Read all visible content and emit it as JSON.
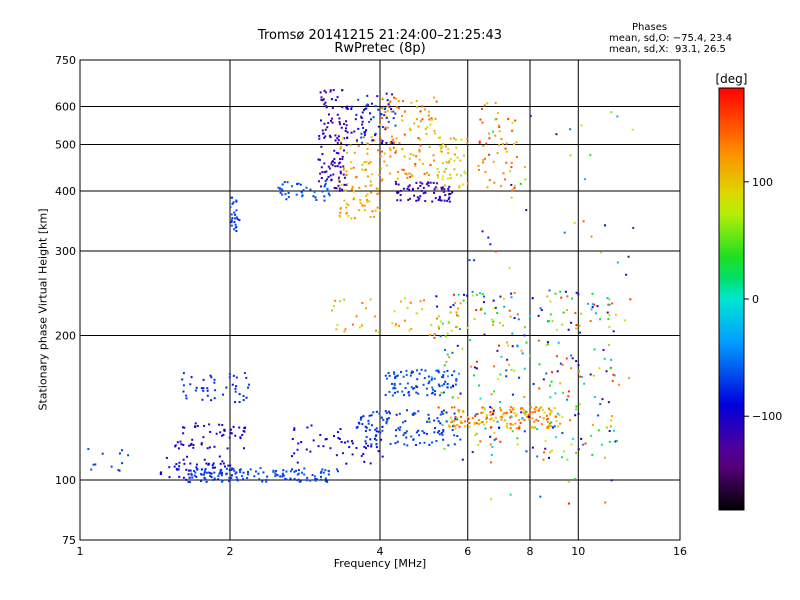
{
  "title": {
    "line1": "Tromsø 20141215 21:24:00–21:25:43",
    "line2": "RwPretec (8p)"
  },
  "phase_box": {
    "heading": "Phases",
    "line_o": "mean, sd,O: −75.4, 23.4",
    "line_x": "mean, sd,X:  93.1, 26.5"
  },
  "colorbar": {
    "unit_label": "[deg]",
    "tick_labels": [
      "100",
      "0",
      "−100"
    ],
    "tick_values": [
      100,
      0,
      -100
    ],
    "range": [
      -180,
      180
    ],
    "colormap": "rainbow"
  },
  "chart_data": {
    "type": "scatter",
    "title": "Tromsø 20141215 21:24:00–21:25:43",
    "subtitle": "RwPretec (8p)",
    "xlabel": "Frequency [MHz]",
    "ylabel": "Stationary phase Virtual Height [km]",
    "x_scale": "log",
    "y_scale": "log",
    "xlim": [
      1,
      16
    ],
    "ylim": [
      75,
      750
    ],
    "x_ticks": [
      1,
      2,
      4,
      6,
      8,
      10,
      16
    ],
    "x_tick_labels": [
      "1",
      "2",
      "4",
      "6",
      "8",
      "10",
      "16"
    ],
    "x_grid": [
      2,
      4,
      6,
      8,
      10
    ],
    "y_ticks": [
      75,
      100,
      200,
      300,
      400,
      500,
      600,
      750
    ],
    "y_tick_labels": [
      "75",
      "100",
      "200",
      "300",
      "400",
      "500",
      "600",
      "750"
    ],
    "y_grid": [
      100,
      200,
      300,
      400,
      500,
      600
    ],
    "grid": true,
    "color_variable": "phase [deg]",
    "clusters": [
      {
        "f": [
          1.0,
          1.25
        ],
        "h": [
          102,
          118
        ],
        "phase": [
          -75,
          -60
        ],
        "n": 12
      },
      {
        "f": [
          1.45,
          2.05
        ],
        "h": [
          100,
          112
        ],
        "phase": [
          -110,
          -80
        ],
        "n": 60
      },
      {
        "f": [
          1.55,
          2.15
        ],
        "h": [
          116,
          132
        ],
        "phase": [
          -120,
          -90
        ],
        "n": 55
      },
      {
        "f": [
          1.6,
          2.2
        ],
        "h": [
          145,
          168
        ],
        "phase": [
          -85,
          -65
        ],
        "n": 45
      },
      {
        "f": [
          1.65,
          3.3
        ],
        "h": [
          99,
          106
        ],
        "phase": [
          -75,
          -60
        ],
        "n": 120
      },
      {
        "f": [
          2.6,
          4.1
        ],
        "h": [
          108,
          130
        ],
        "phase": [
          -110,
          -80
        ],
        "n": 55
      },
      {
        "f": [
          3.6,
          5.8
        ],
        "h": [
          118,
          140
        ],
        "phase": [
          -80,
          -60
        ],
        "n": 120
      },
      {
        "f": [
          4.1,
          5.7
        ],
        "h": [
          150,
          170
        ],
        "phase": [
          -75,
          -55
        ],
        "n": 90
      },
      {
        "f": [
          5.5,
          9.3
        ],
        "h": [
          128,
          142
        ],
        "phase": [
          80,
          160
        ],
        "n": 160
      },
      {
        "f": [
          5.0,
          12.0
        ],
        "h": [
          110,
          250
        ],
        "phase": [
          -130,
          170
        ],
        "n": 280
      },
      {
        "f": [
          3.2,
          6.0
        ],
        "h": [
          200,
          240
        ],
        "phase": [
          60,
          140
        ],
        "n": 50
      },
      {
        "f": [
          2.0,
          2.1
        ],
        "h": [
          330,
          390
        ],
        "phase": [
          -80,
          -60
        ],
        "n": 25
      },
      {
        "f": [
          2.5,
          3.2
        ],
        "h": [
          380,
          420
        ],
        "phase": [
          -75,
          -55
        ],
        "n": 40
      },
      {
        "f": [
          3.0,
          3.45
        ],
        "h": [
          400,
          650
        ],
        "phase": [
          -130,
          -100
        ],
        "n": 120
      },
      {
        "f": [
          3.3,
          4.0
        ],
        "h": [
          350,
          520
        ],
        "phase": [
          90,
          140
        ],
        "n": 90
      },
      {
        "f": [
          3.5,
          4.3
        ],
        "h": [
          500,
          650
        ],
        "phase": [
          -120,
          -60
        ],
        "n": 70
      },
      {
        "f": [
          4.0,
          5.2
        ],
        "h": [
          420,
          630
        ],
        "phase": [
          90,
          160
        ],
        "n": 110
      },
      {
        "f": [
          4.3,
          5.6
        ],
        "h": [
          380,
          420
        ],
        "phase": [
          -130,
          -100
        ],
        "n": 70
      },
      {
        "f": [
          5.2,
          6.0
        ],
        "h": [
          400,
          520
        ],
        "phase": [
          60,
          130
        ],
        "n": 50
      },
      {
        "f": [
          6.3,
          7.6
        ],
        "h": [
          400,
          620
        ],
        "phase": [
          90,
          160
        ],
        "n": 55
      },
      {
        "f": [
          6.0,
          13.0
        ],
        "h": [
          85,
          660
        ],
        "phase": [
          -150,
          170
        ],
        "n": 80
      }
    ]
  }
}
